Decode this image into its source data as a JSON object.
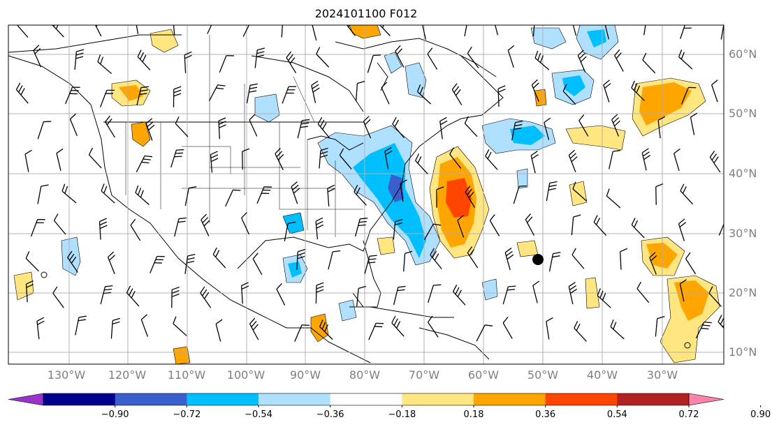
{
  "title": "2024101100 F012",
  "lat_labels": [
    "60°N",
    "50°N",
    "40°N",
    "30°N",
    "20°N",
    "10°N"
  ],
  "lon_labels": [
    "130°W",
    "120°W",
    "110°W",
    "100°W",
    "90°W",
    "80°W",
    "70°W",
    "60°W",
    "50°W",
    "40°W",
    "30°W"
  ],
  "colorbar": {
    "ticks": [
      "−0.90",
      "−0.72",
      "−0.54",
      "−0.36",
      "−0.18",
      "0.18",
      "0.36",
      "0.54",
      "0.72",
      "0.90"
    ],
    "colors": [
      "#9932cc",
      "#00008b",
      "#3a5fcd",
      "#00bfff",
      "#b0e0ff",
      "#ffffff",
      "#ffe680",
      "#ffa500",
      "#ff4500",
      "#b22222",
      "#ff82ab"
    ]
  },
  "colors": {
    "neg_light": "#b0e0ff",
    "neg_mid": "#00bfff",
    "neg_dark": "#3a5fcd",
    "pos_light": "#ffe680",
    "pos_mid": "#ffa500",
    "pos_dark": "#ff4500"
  }
}
